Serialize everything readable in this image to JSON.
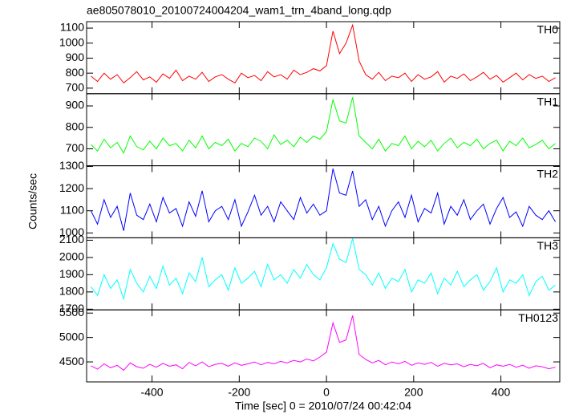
{
  "chart_data": {
    "type": "line",
    "title": "ae805078010_20100724004204_wam1_trn_4band_long.qdp",
    "x_label": "Time [sec] 0 = 2010/07/24 00:42:04",
    "y_label": "Counts/sec",
    "xlim": [
      -550,
      535
    ],
    "xticks": [
      -400,
      -200,
      0,
      200,
      400
    ],
    "x": [
      -540,
      -525,
      -510,
      -495,
      -480,
      -465,
      -450,
      -435,
      -420,
      -405,
      -390,
      -375,
      -360,
      -345,
      -330,
      -315,
      -300,
      -285,
      -270,
      -255,
      -240,
      -225,
      -210,
      -195,
      -180,
      -165,
      -150,
      -135,
      -120,
      -105,
      -90,
      -75,
      -60,
      -45,
      -30,
      -15,
      0,
      15,
      30,
      45,
      60,
      75,
      90,
      105,
      120,
      135,
      150,
      165,
      180,
      195,
      210,
      225,
      240,
      255,
      270,
      285,
      300,
      315,
      330,
      345,
      360,
      375,
      390,
      405,
      420,
      435,
      450,
      465,
      480,
      495,
      510,
      525
    ],
    "series": [
      {
        "name": "TH0",
        "color": "#ff0000",
        "ylim": [
          663,
          1143
        ],
        "yticks": [
          700,
          800,
          900,
          1000,
          1100
        ],
        "values": [
          780,
          745,
          800,
          760,
          790,
          735,
          770,
          810,
          755,
          775,
          740,
          795,
          765,
          820,
          750,
          780,
          760,
          805,
          745,
          775,
          790,
          760,
          735,
          800,
          770,
          785,
          750,
          810,
          775,
          790,
          760,
          820,
          790,
          805,
          830,
          815,
          850,
          1080,
          930,
          1000,
          1120,
          880,
          790,
          760,
          805,
          750,
          780,
          770,
          800,
          745,
          790,
          760,
          775,
          810,
          740,
          780,
          765,
          795,
          750,
          775,
          805,
          760,
          785,
          740,
          770,
          800,
          755,
          790,
          765,
          780,
          745,
          770
        ]
      },
      {
        "name": "TH1",
        "color": "#00ff00",
        "ylim": [
          621,
          957
        ],
        "yticks": [
          700,
          800,
          900
        ],
        "values": [
          720,
          690,
          745,
          705,
          730,
          680,
          760,
          710,
          695,
          735,
          700,
          750,
          715,
          725,
          690,
          740,
          705,
          760,
          700,
          730,
          715,
          745,
          690,
          725,
          710,
          750,
          735,
          700,
          765,
          720,
          740,
          710,
          755,
          730,
          760,
          745,
          780,
          930,
          830,
          820,
          940,
          760,
          730,
          700,
          745,
          690,
          725,
          715,
          760,
          700,
          735,
          710,
          740,
          690,
          725,
          750,
          705,
          730,
          715,
          745,
          700,
          725,
          740,
          690,
          735,
          715,
          750,
          705,
          720,
          740,
          700,
          725
        ]
      },
      {
        "name": "TH2",
        "color": "#0000ff",
        "ylim": [
          978,
          1303
        ],
        "yticks": [
          1000,
          1100,
          1200,
          1300
        ],
        "values": [
          1100,
          1040,
          1150,
          1070,
          1120,
          1010,
          1180,
          1080,
          1060,
          1130,
          1050,
          1160,
          1090,
          1110,
          1030,
          1140,
          1075,
          1190,
          1050,
          1100,
          1120,
          1060,
          1150,
          1030,
          1095,
          1170,
          1080,
          1120,
          1050,
          1140,
          1100,
          1060,
          1160,
          1090,
          1130,
          1080,
          1100,
          1290,
          1180,
          1170,
          1280,
          1120,
          1150,
          1060,
          1120,
          1030,
          1100,
          1140,
          1070,
          1170,
          1050,
          1110,
          1090,
          1180,
          1040,
          1120,
          1080,
          1150,
          1060,
          1100,
          1130,
          1040,
          1110,
          1160,
          1070,
          1095,
          1030,
          1120,
          1080,
          1060,
          1100,
          1050
        ]
      },
      {
        "name": "TH3",
        "color": "#00ffff",
        "ylim": [
          1696,
          2114
        ],
        "yticks": [
          1700,
          1800,
          1900,
          2000,
          2100
        ],
        "values": [
          1830,
          1780,
          1900,
          1820,
          1870,
          1760,
          1930,
          1850,
          1800,
          1890,
          1820,
          1950,
          1840,
          1880,
          1790,
          1910,
          1860,
          2000,
          1830,
          1870,
          1900,
          1810,
          1940,
          1850,
          1880,
          1920,
          1830,
          1960,
          1870,
          1900,
          1850,
          1930,
          1880,
          1960,
          1900,
          1870,
          1940,
          2080,
          1990,
          1970,
          2110,
          1930,
          1900,
          1840,
          1910,
          1820,
          1880,
          1860,
          1930,
          1800,
          1870,
          1850,
          1910,
          1790,
          1880,
          1840,
          1920,
          1830,
          1870,
          1900,
          1810,
          1860,
          1940,
          1800,
          1870,
          1850,
          1900,
          1780,
          1860,
          1890,
          1810,
          1840
        ]
      },
      {
        "name": "TH0123",
        "color": "#ff00ff",
        "ylim": [
          4090,
          5566
        ],
        "yticks": [
          4500,
          5000,
          5500
        ],
        "values": [
          4420,
          4350,
          4460,
          4380,
          4430,
          4330,
          4480,
          4400,
          4370,
          4450,
          4390,
          4470,
          4410,
          4440,
          4360,
          4490,
          4420,
          4500,
          4400,
          4450,
          4470,
          4410,
          4480,
          4430,
          4460,
          4500,
          4440,
          4490,
          4460,
          4510,
          4480,
          4530,
          4500,
          4560,
          4520,
          4600,
          4700,
          5300,
          4900,
          4950,
          5450,
          4650,
          4550,
          4480,
          4530,
          4440,
          4500,
          4460,
          4510,
          4430,
          4480,
          4450,
          4490,
          4410,
          4470,
          4440,
          4460,
          4400,
          4450,
          4420,
          4470,
          4380,
          4440,
          4410,
          4450,
          4390,
          4430,
          4370,
          4420,
          4400,
          4360,
          4390
        ]
      }
    ]
  }
}
